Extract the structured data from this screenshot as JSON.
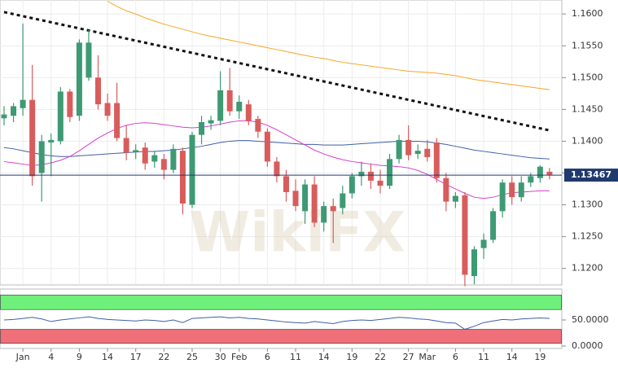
{
  "chart_data": [
    {
      "type": "candlestick",
      "categories": [
        null,
        null,
        "Jan",
        null,
        null,
        "4",
        null,
        null,
        "9",
        null,
        null,
        "14",
        null,
        null,
        "17",
        null,
        null,
        "22",
        null,
        null,
        "25",
        null,
        null,
        "30",
        null,
        "Feb",
        null,
        null,
        "6",
        null,
        null,
        "11",
        null,
        null,
        "14",
        null,
        null,
        "19",
        null,
        null,
        "22",
        null,
        null,
        "27",
        null,
        "Mar",
        null,
        null,
        "6",
        null,
        null,
        "11",
        null,
        null,
        "14",
        null,
        null,
        "19",
        null
      ],
      "open": [
        1.1436,
        1.144,
        1.1452,
        1.1465,
        1.135,
        1.1398,
        1.14,
        1.1478,
        1.144,
        1.15,
        1.15,
        1.146,
        1.146,
        1.1405,
        1.1383,
        1.139,
        1.1368,
        1.1372,
        1.1355,
        1.1385,
        1.13,
        1.141,
        1.1428,
        1.1432,
        1.148,
        1.1447,
        1.1458,
        1.1435,
        1.1415,
        1.1368,
        1.1345,
        1.1322,
        1.129,
        1.1332,
        1.1272,
        1.1298,
        1.1295,
        1.1318,
        1.1345,
        1.1352,
        1.1338,
        1.133,
        1.1372,
        1.1402,
        1.138,
        1.1388,
        1.1398,
        1.1342,
        1.1305,
        1.1315,
        1.1188,
        1.1232,
        1.1245,
        1.129,
        1.1335,
        1.1312,
        1.1335,
        1.1342,
        1.1352
      ],
      "high": [
        1.1455,
        1.146,
        1.1585,
        1.152,
        1.141,
        1.1412,
        1.1485,
        1.1482,
        1.156,
        1.1575,
        1.1535,
        1.1475,
        1.1492,
        1.1425,
        1.1395,
        1.1398,
        1.1385,
        1.138,
        1.1395,
        1.139,
        1.1415,
        1.144,
        1.144,
        1.151,
        1.1515,
        1.1472,
        1.1465,
        1.144,
        1.142,
        1.1375,
        1.1355,
        1.134,
        1.134,
        1.1345,
        1.1305,
        1.131,
        1.133,
        1.135,
        1.1368,
        1.1365,
        1.1355,
        1.138,
        1.141,
        1.1425,
        1.1395,
        1.1402,
        1.1405,
        1.135,
        1.132,
        1.132,
        1.1235,
        1.1255,
        1.1295,
        1.134,
        1.1345,
        1.1345,
        1.135,
        1.1362,
        1.1358
      ],
      "low": [
        1.1425,
        1.143,
        1.144,
        1.133,
        1.1305,
        1.1345,
        1.1395,
        1.143,
        1.1432,
        1.1495,
        1.145,
        1.1432,
        1.14,
        1.137,
        1.1372,
        1.1355,
        1.1358,
        1.134,
        1.135,
        1.1285,
        1.1295,
        1.1395,
        1.1418,
        1.1425,
        1.144,
        1.1435,
        1.1425,
        1.1405,
        1.136,
        1.1335,
        1.1305,
        1.129,
        1.127,
        1.1265,
        1.1258,
        1.124,
        1.1285,
        1.131,
        1.133,
        1.1325,
        1.1318,
        1.1325,
        1.1365,
        1.137,
        1.1372,
        1.1368,
        1.1335,
        1.129,
        1.1295,
        1.1172,
        1.1175,
        1.1215,
        1.124,
        1.128,
        1.13,
        1.1305,
        1.1328,
        1.1335,
        1.134
      ],
      "close": [
        1.1442,
        1.1455,
        1.1465,
        1.1345,
        1.14,
        1.1402,
        1.1478,
        1.1438,
        1.1555,
        1.1555,
        1.1458,
        1.144,
        1.1405,
        1.1382,
        1.1386,
        1.1365,
        1.1378,
        1.1355,
        1.1388,
        1.1302,
        1.141,
        1.143,
        1.1433,
        1.148,
        1.1447,
        1.1462,
        1.1432,
        1.1415,
        1.1368,
        1.1345,
        1.132,
        1.1298,
        1.1332,
        1.1272,
        1.1298,
        1.129,
        1.1318,
        1.1345,
        1.1352,
        1.1338,
        1.133,
        1.1372,
        1.1402,
        1.1378,
        1.1385,
        1.1375,
        1.1342,
        1.1305,
        1.1314,
        1.119,
        1.123,
        1.1245,
        1.129,
        1.1335,
        1.1312,
        1.1335,
        1.1345,
        1.136,
        1.1347
      ],
      "up_color": "#3d9a74",
      "down_color": "#d95c5c",
      "series": [
        {
          "color": "#f5a623",
          "values": [
            null,
            null,
            null,
            null,
            null,
            null,
            null,
            null,
            null,
            null,
            null,
            1.162,
            1.1612,
            1.1605,
            1.16,
            1.1594,
            1.1589,
            1.1584,
            1.158,
            1.1576,
            1.1572,
            1.1568,
            1.1565,
            1.1562,
            1.1559,
            1.1556,
            1.1553,
            1.155,
            1.1547,
            1.1544,
            1.1541,
            1.1538,
            1.1535,
            1.1532,
            1.153,
            1.1527,
            1.1524,
            1.1522,
            1.152,
            1.1518,
            1.1516,
            1.1514,
            1.1512,
            1.151,
            1.1509,
            1.1508,
            1.1507,
            1.1505,
            1.1503,
            1.15,
            1.1497,
            1.1495,
            1.1493,
            1.1491,
            1.1489,
            1.1487,
            1.1485,
            1.1483,
            1.1481
          ]
        },
        {
          "color": "#3f5fa8",
          "values": [
            1.139,
            1.1388,
            1.1385,
            1.1382,
            1.1379,
            1.1377,
            1.1376,
            1.1376,
            1.1377,
            1.1378,
            1.1379,
            1.138,
            1.1381,
            1.1382,
            1.1383,
            1.1384,
            1.1384,
            1.1385,
            1.1386,
            1.1388,
            1.139,
            1.1392,
            1.1395,
            1.1398,
            1.14,
            1.1401,
            1.1401,
            1.14,
            1.1399,
            1.1398,
            1.1397,
            1.1396,
            1.1395,
            1.1395,
            1.1394,
            1.1394,
            1.1394,
            1.1395,
            1.1396,
            1.1397,
            1.1398,
            1.1399,
            1.14,
            1.14,
            1.14,
            1.1399,
            1.1397,
            1.1395,
            1.1392,
            1.1389,
            1.1386,
            1.1384,
            1.1382,
            1.138,
            1.1378,
            1.1376,
            1.1374,
            1.1373,
            1.1372
          ]
        },
        {
          "color": "#d63fd0",
          "values": [
            1.1368,
            1.1366,
            1.1364,
            1.1362,
            1.1363,
            1.1366,
            1.137,
            1.1376,
            1.1385,
            1.1395,
            1.1405,
            1.1413,
            1.142,
            1.1425,
            1.1428,
            1.1429,
            1.1428,
            1.1426,
            1.1424,
            1.1422,
            1.1421,
            1.1422,
            1.1424,
            1.1427,
            1.143,
            1.1432,
            1.1432,
            1.143,
            1.1425,
            1.1418,
            1.141,
            1.1402,
            1.1394,
            1.1386,
            1.138,
            1.1375,
            1.1371,
            1.1368,
            1.1366,
            1.1364,
            1.1362,
            1.1361,
            1.136,
            1.1358,
            1.1354,
            1.1348,
            1.134,
            1.1332,
            1.1325,
            1.1318,
            1.1312,
            1.131,
            1.1312,
            1.1316,
            1.1319,
            1.132,
            1.1321,
            1.1322,
            1.1322
          ]
        }
      ],
      "trendline": {
        "color": "#111111",
        "values": [
          1.1603,
          1.1417
        ]
      },
      "last_price": 1.13467,
      "last_price_color": "#1f3a6e",
      "watermark": "WikiFX",
      "ylim": [
        1.1174,
        1.1622
      ],
      "yticks": [
        {
          "value": 1.12,
          "label": "1.1200"
        },
        {
          "value": 1.125,
          "label": "1.1250"
        },
        {
          "value": 1.13,
          "label": "1.1300"
        },
        {
          "value": 1.135,
          "label": "1.1350"
        },
        {
          "value": 1.14,
          "label": "1.1400"
        },
        {
          "value": 1.145,
          "label": "1.1450"
        },
        {
          "value": 1.15,
          "label": "1.1500"
        },
        {
          "value": 1.155,
          "label": "1.1550"
        },
        {
          "value": 1.16,
          "label": "1.1600"
        }
      ],
      "grid": true
    },
    {
      "type": "line",
      "series": [
        {
          "color": "#3f5fa8",
          "values": [
            50,
            51,
            53,
            55,
            52,
            47,
            50,
            52,
            54,
            56,
            53,
            51,
            50,
            49,
            48,
            50,
            49,
            47,
            50,
            45,
            53,
            54,
            55,
            56,
            54,
            55,
            53,
            52,
            50,
            48,
            46,
            45,
            44,
            47,
            45,
            43,
            47,
            49,
            50,
            49,
            51,
            53,
            55,
            54,
            52,
            51,
            48,
            45,
            44,
            32,
            38,
            45,
            48,
            51,
            50,
            52,
            53,
            54,
            53
          ]
        }
      ],
      "bands": [
        {
          "range": [
            70,
            98
          ],
          "color": "#6ff07a"
        },
        {
          "range": [
            5,
            32
          ],
          "color": "#f0707a"
        }
      ],
      "ylim": [
        0,
        100
      ],
      "yticks": [
        {
          "value": 0,
          "label": "0.0000"
        },
        {
          "value": 50,
          "label": "50.0000"
        }
      ],
      "grid": true
    }
  ]
}
